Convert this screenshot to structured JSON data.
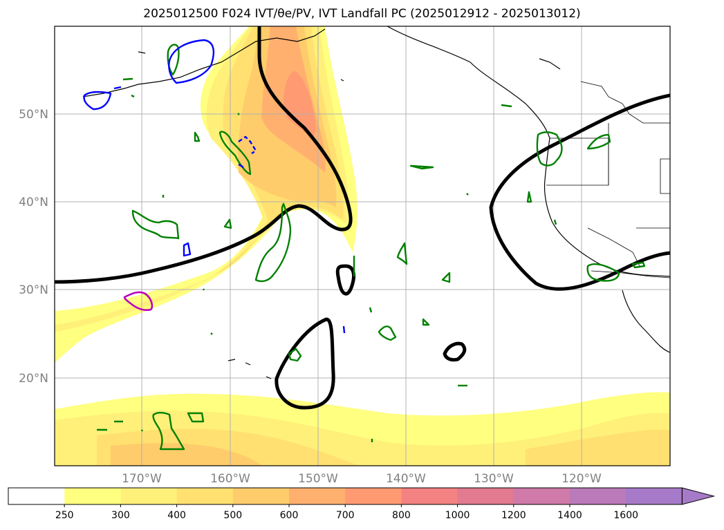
{
  "title": "2025012500 F024 IVT/θe/PV, IVT Landfall PC (2025012912 - 2025013012)",
  "lat_labels": [
    "50°N",
    "40°N",
    "30°N",
    "20°N"
  ],
  "lon_labels": [
    "170°W",
    "160°W",
    "150°W",
    "140°W",
    "130°W",
    "120°W"
  ],
  "colorbar": {
    "ticks": [
      "250",
      "300",
      "400",
      "500",
      "600",
      "700",
      "800",
      "1000",
      "1200",
      "1400",
      "1600"
    ],
    "colors": [
      "#ffffff",
      "#ffff80",
      "#fff07a",
      "#ffe070",
      "#ffcc6b",
      "#ffb06e",
      "#ff9a72",
      "#f58282",
      "#e27a90",
      "#cf7aa8",
      "#bb7ab9",
      "#a67ac8"
    ]
  },
  "colors": {
    "ivt_contour": "#000000",
    "pv_positive": "#008000",
    "pv_negative": "#0000ff",
    "theta_e": "#bb00bb",
    "frame": "#000000",
    "grid": "#b0b0b0"
  }
}
